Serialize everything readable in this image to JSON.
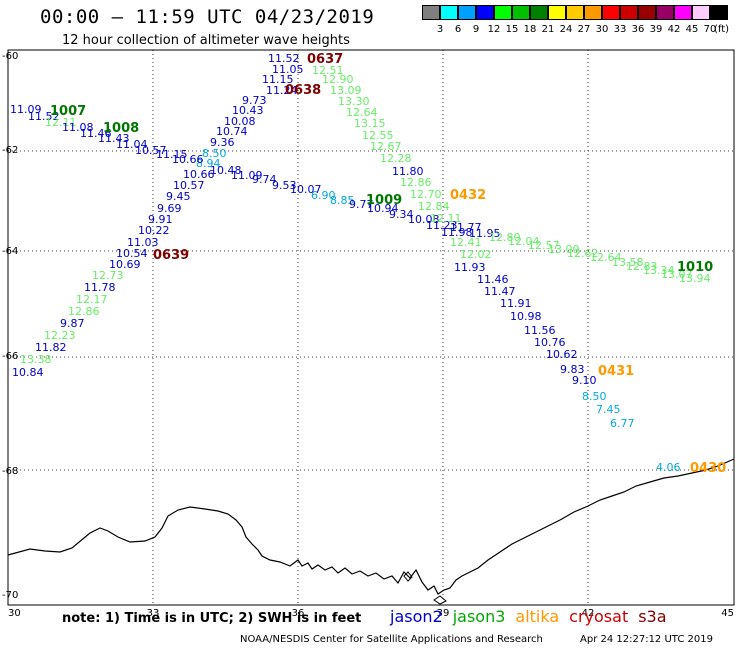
{
  "header": {
    "title": "00:00 – 11:59 UTC 04/23/2019",
    "subtitle": "12 hour collection of altimeter wave heights"
  },
  "colorbar": {
    "unit": "(ft)",
    "items": [
      {
        "label": "3",
        "color": "#7f7f7f"
      },
      {
        "label": "6",
        "color": "#00ffff"
      },
      {
        "label": "9",
        "color": "#00a0ff"
      },
      {
        "label": "12",
        "color": "#0000ff"
      },
      {
        "label": "15",
        "color": "#00ff00"
      },
      {
        "label": "18",
        "color": "#00c000"
      },
      {
        "label": "21",
        "color": "#008000"
      },
      {
        "label": "24",
        "color": "#ffff00"
      },
      {
        "label": "27",
        "color": "#ffcc00"
      },
      {
        "label": "30",
        "color": "#ff9900"
      },
      {
        "label": "33",
        "color": "#ff0000"
      },
      {
        "label": "36",
        "color": "#cc0000"
      },
      {
        "label": "39",
        "color": "#990000"
      },
      {
        "label": "42",
        "color": "#990066"
      },
      {
        "label": "45",
        "color": "#ff00ff"
      },
      {
        "label": "70",
        "color": "#ffccff"
      },
      {
        "label": "",
        "color": "#000000"
      }
    ]
  },
  "axes": {
    "lat_labels": [
      "-60",
      "-62",
      "-64",
      "-66",
      "-68",
      "-70"
    ],
    "lon_labels": [
      "30",
      "33",
      "36",
      "39",
      "42",
      "45"
    ]
  },
  "colors": {
    "jason2": "#0000cc",
    "jason3": "#00aa00",
    "altika": "#ff9900",
    "cryosat": "#cc0000",
    "s3a": "#800000",
    "high": "#66ee66",
    "cyan": "#00aadd",
    "pass_dark": "#800000",
    "pass_green": "#007700"
  },
  "wave_values": [
    {
      "t": "11.52",
      "c": "jason2"
    },
    {
      "t": "11.05",
      "c": "jason2"
    },
    {
      "t": "11.15",
      "c": "jason2"
    },
    {
      "t": "11.24",
      "c": "jason2"
    },
    {
      "t": "9.73",
      "c": "jason2"
    },
    {
      "t": "10.43",
      "c": "jason2"
    },
    {
      "t": "10.08",
      "c": "jason2"
    },
    {
      "t": "10.74",
      "c": "jason2"
    },
    {
      "t": "9.36",
      "c": "jason2"
    },
    {
      "t": "8.50",
      "c": "cyan"
    },
    {
      "t": "8.94",
      "c": "cyan"
    },
    {
      "t": "10.48",
      "c": "jason2"
    },
    {
      "t": "10.66",
      "c": "jason2"
    },
    {
      "t": "10.57",
      "c": "jason2"
    },
    {
      "t": "9.45",
      "c": "jason2"
    },
    {
      "t": "9.69",
      "c": "jason2"
    },
    {
      "t": "9.91",
      "c": "jason2"
    },
    {
      "t": "10.22",
      "c": "jason2"
    },
    {
      "t": "11.03",
      "c": "jason2"
    },
    {
      "t": "10.54",
      "c": "jason2"
    },
    {
      "t": "10.69",
      "c": "jason2"
    },
    {
      "t": "12.73",
      "c": "high"
    },
    {
      "t": "11.78",
      "c": "jason2"
    },
    {
      "t": "12.17",
      "c": "high"
    },
    {
      "t": "12.86",
      "c": "high"
    },
    {
      "t": "9.87",
      "c": "jason2"
    },
    {
      "t": "12.23",
      "c": "high"
    },
    {
      "t": "11.82",
      "c": "jason2"
    },
    {
      "t": "13.38",
      "c": "high"
    },
    {
      "t": "10.84",
      "c": "jason2"
    },
    {
      "t": "11.09",
      "c": "jason2"
    },
    {
      "t": "11.52",
      "c": "jason2"
    },
    {
      "t": "12.11",
      "c": "high"
    },
    {
      "t": "11.08",
      "c": "jason2"
    },
    {
      "t": "11.46",
      "c": "jason2"
    },
    {
      "t": "11.43",
      "c": "jason2"
    },
    {
      "t": "11.04",
      "c": "jason2"
    },
    {
      "t": "10.57",
      "c": "jason2"
    },
    {
      "t": "11.15",
      "c": "jason2"
    },
    {
      "t": "10.66",
      "c": "jason2"
    },
    {
      "t": "11.09",
      "c": "jason2"
    },
    {
      "t": "9.74",
      "c": "jason2"
    },
    {
      "t": "9.53",
      "c": "jason2"
    },
    {
      "t": "10.07",
      "c": "jason2"
    },
    {
      "t": "6.90",
      "c": "cyan"
    },
    {
      "t": "8.85",
      "c": "cyan"
    },
    {
      "t": "9.77",
      "c": "jason2"
    },
    {
      "t": "10.94",
      "c": "jason2"
    },
    {
      "t": "9.34",
      "c": "jason2"
    },
    {
      "t": "10.08",
      "c": "jason2"
    },
    {
      "t": "11.23",
      "c": "jason2"
    },
    {
      "t": "11.77",
      "c": "jason2"
    },
    {
      "t": "11.98",
      "c": "jason2"
    },
    {
      "t": "11.95",
      "c": "jason2"
    },
    {
      "t": "12.80",
      "c": "high"
    },
    {
      "t": "12.04",
      "c": "high"
    },
    {
      "t": "12.57",
      "c": "high"
    },
    {
      "t": "13.00",
      "c": "high"
    },
    {
      "t": "12.62",
      "c": "high"
    },
    {
      "t": "12.64",
      "c": "high"
    },
    {
      "t": "13.58",
      "c": "high"
    },
    {
      "t": "12.83",
      "c": "high"
    },
    {
      "t": "13.34",
      "c": "high"
    },
    {
      "t": "13.07",
      "c": "high"
    },
    {
      "t": "13.94",
      "c": "high"
    },
    {
      "t": "12.51",
      "c": "high"
    },
    {
      "t": "12.90",
      "c": "high"
    },
    {
      "t": "13.09",
      "c": "high"
    },
    {
      "t": "13.30",
      "c": "high"
    },
    {
      "t": "12.64",
      "c": "high"
    },
    {
      "t": "13.15",
      "c": "high"
    },
    {
      "t": "12.55",
      "c": "high"
    },
    {
      "t": "12.67",
      "c": "high"
    },
    {
      "t": "12.28",
      "c": "high"
    },
    {
      "t": "11.80",
      "c": "jason2"
    },
    {
      "t": "12.86",
      "c": "high"
    },
    {
      "t": "12.70",
      "c": "high"
    },
    {
      "t": "12.84",
      "c": "high"
    },
    {
      "t": "12.11",
      "c": "high"
    },
    {
      "t": "12.41",
      "c": "high"
    },
    {
      "t": "12.02",
      "c": "high"
    },
    {
      "t": "11.93",
      "c": "jason2"
    },
    {
      "t": "11.46",
      "c": "jason2"
    },
    {
      "t": "11.47",
      "c": "jason2"
    },
    {
      "t": "11.91",
      "c": "jason2"
    },
    {
      "t": "10.98",
      "c": "jason2"
    },
    {
      "t": "11.56",
      "c": "jason2"
    },
    {
      "t": "10.76",
      "c": "jason2"
    },
    {
      "t": "10.62",
      "c": "jason2"
    },
    {
      "t": "9.83",
      "c": "jason2"
    },
    {
      "t": "9.10",
      "c": "jason2"
    },
    {
      "t": "8.50",
      "c": "cyan"
    },
    {
      "t": "7.45",
      "c": "cyan"
    },
    {
      "t": "6.77",
      "c": "cyan"
    },
    {
      "t": "4.06",
      "c": "cyan"
    }
  ],
  "passes": [
    {
      "t": "0637",
      "c": "pass_dark"
    },
    {
      "t": "0638",
      "c": "pass_dark"
    },
    {
      "t": "1007",
      "c": "pass_green"
    },
    {
      "t": "1008",
      "c": "pass_green"
    },
    {
      "t": "0639",
      "c": "pass_dark"
    },
    {
      "t": "1009",
      "c": "pass_green"
    },
    {
      "t": "0432",
      "c": "altika"
    },
    {
      "t": "1010",
      "c": "pass_green"
    },
    {
      "t": "0431",
      "c": "altika"
    },
    {
      "t": "0430",
      "c": "altika"
    }
  ],
  "footer": {
    "note": "note: 1) Time is in UTC; 2) SWH is in feet",
    "legend": [
      {
        "label": "jason2",
        "color": "#0000cc"
      },
      {
        "label": "jason3",
        "color": "#00aa00"
      },
      {
        "label": "altika",
        "color": "#ff9900"
      },
      {
        "label": "cryosat",
        "color": "#cc0000"
      },
      {
        "label": "s3a",
        "color": "#800000"
      }
    ],
    "credit": "NOAA/NESDIS Center for Satellite Applications and Research",
    "timestamp": "Apr 24 12:27:12 UTC 2019"
  }
}
